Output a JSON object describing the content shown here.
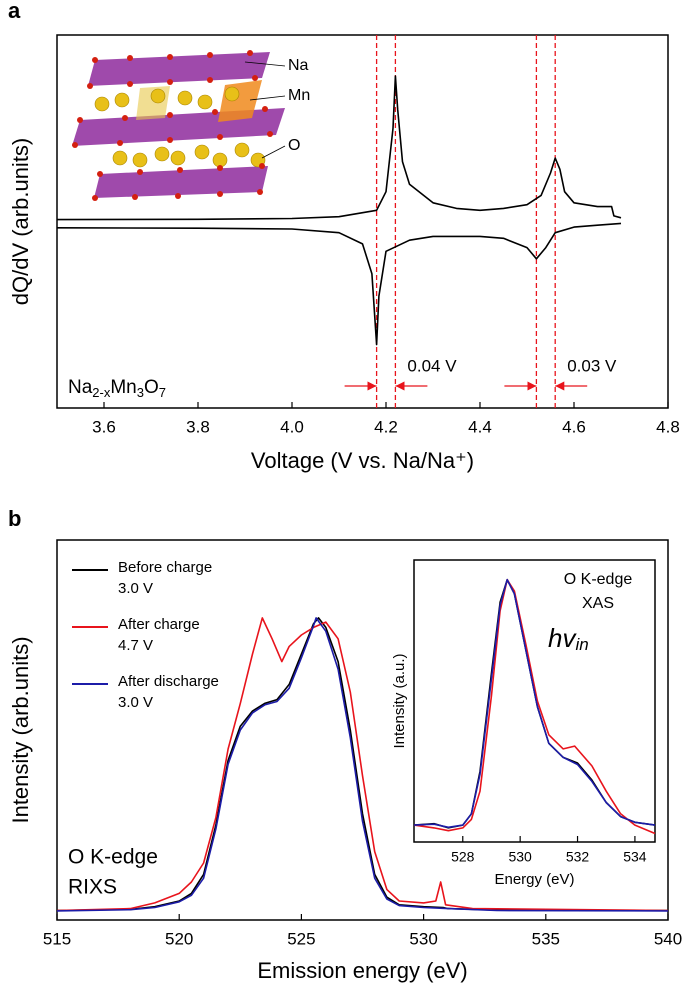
{
  "chart_data": [
    {
      "type": "line",
      "panel_label": "a",
      "xlabel": "Voltage (V vs. Na/Na⁺)",
      "ylabel": "dQ/dV (arb.units)",
      "xlim": [
        3.5,
        4.8
      ],
      "ylim": [
        0,
        100
      ],
      "xticks": [
        3.6,
        3.8,
        {
          "value": 4,
          "label": "4.0"
        },
        4.2,
        4.4,
        4.6,
        4.8
      ],
      "vlines": [
        4.18,
        4.22,
        4.52,
        4.56
      ],
      "vline_color": "#e8141c",
      "gap_labels": [
        "0.04 V",
        "0.03 V"
      ],
      "formula": [
        "Na",
        "2-x",
        "Mn",
        "3",
        "O",
        "7"
      ],
      "structure_labels": [
        "Na",
        "Mn",
        "O"
      ],
      "series": [
        {
          "color": "#000000",
          "x": [
            3.5,
            3.8,
            4.0,
            4.1,
            4.18,
            4.2,
            4.215,
            4.22,
            4.225,
            4.235,
            4.25,
            4.3,
            4.35,
            4.4,
            4.45,
            4.5,
            4.53,
            4.55,
            4.56,
            4.57,
            4.58,
            4.6,
            4.65,
            4.68,
            4.685,
            4.7
          ],
          "values": [
            50.5,
            50.6,
            50.8,
            51.3,
            53,
            58,
            75,
            89,
            80,
            66,
            60,
            55,
            53.5,
            53,
            53.5,
            54.5,
            57,
            63,
            67,
            64,
            58,
            55,
            54,
            54,
            51.5,
            51
          ]
        },
        {
          "color": "#000000",
          "x": [
            3.5,
            3.8,
            4.0,
            4.1,
            4.15,
            4.17,
            4.18,
            4.185,
            4.2,
            4.25,
            4.3,
            4.4,
            4.45,
            4.5,
            4.52,
            4.54,
            4.56,
            4.6,
            4.65,
            4.7
          ],
          "values": [
            48.3,
            48.2,
            48,
            47,
            44,
            36,
            17,
            30,
            42,
            45,
            46,
            46,
            45.5,
            43,
            40,
            43,
            47,
            48.5,
            49,
            49.5
          ]
        }
      ]
    },
    {
      "type": "line",
      "panel_label": "b",
      "xlabel": "Emission energy (eV)",
      "ylabel": "Intensity (arb.units)",
      "xlim": [
        515,
        540
      ],
      "ylim": [
        0,
        100
      ],
      "xticks": [
        515,
        520,
        525,
        530,
        535,
        540
      ],
      "text_lines": [
        "O K-edge",
        "RIXS"
      ],
      "series": [
        {
          "name": "Before charge",
          "sublabel": "3.0 V",
          "color": "#000000",
          "x": [
            515,
            518,
            519,
            520,
            520.5,
            521,
            521.5,
            522,
            522.5,
            523,
            523.5,
            524,
            524.5,
            525,
            525.5,
            525.7,
            526,
            526.5,
            527,
            527.5,
            528,
            528.5,
            529,
            530,
            530.8,
            531,
            533,
            540
          ],
          "values": [
            2.5,
            2.8,
            3.5,
            5,
            7,
            12,
            25,
            42,
            51,
            55,
            57,
            58,
            62,
            70,
            78,
            79.5,
            77,
            68,
            50,
            28,
            12,
            6,
            4,
            3.5,
            3.3,
            3,
            2.6,
            2.5
          ]
        },
        {
          "name": "After charge",
          "sublabel": "4.7 V",
          "color": "#e8141c",
          "x": [
            515,
            518,
            519,
            520,
            520.5,
            521,
            521.5,
            522,
            522.5,
            523,
            523.4,
            523.8,
            524.2,
            524.5,
            525,
            525.5,
            526,
            526.5,
            527,
            527.5,
            528,
            528.5,
            529,
            530,
            530.5,
            530.7,
            530.9,
            532,
            540
          ],
          "values": [
            2.5,
            3,
            4.5,
            7,
            10,
            15,
            27,
            45,
            57,
            70,
            79.5,
            74,
            68,
            72,
            75,
            77,
            78.4,
            74,
            60,
            38,
            18,
            8,
            5,
            4.5,
            5,
            10,
            4,
            3,
            2.5
          ]
        },
        {
          "name": "After discharge",
          "sublabel": "3.0 V",
          "color": "#1c1ca8",
          "x": [
            515,
            518,
            519,
            520,
            520.5,
            521,
            521.5,
            522,
            522.5,
            523,
            523.5,
            524,
            524.5,
            525,
            525.5,
            525.6,
            526,
            526.5,
            527,
            527.5,
            528,
            528.5,
            529,
            530,
            531,
            533,
            540
          ],
          "values": [
            2.4,
            2.7,
            3.3,
            4.8,
            6.5,
            11,
            24,
            41,
            50,
            54.5,
            56.6,
            57.5,
            61,
            69,
            77.5,
            79.5,
            76,
            66,
            48,
            26,
            11,
            5.5,
            3.8,
            3.3,
            3,
            2.5,
            2.4
          ]
        }
      ]
    },
    {
      "type": "line",
      "xlabel": "Energy (eV)",
      "ylabel": "Intensity (a.u.)",
      "xlim": [
        526.3,
        534.7
      ],
      "ylim": [
        0,
        100
      ],
      "xticks": [
        528,
        530,
        532,
        534
      ],
      "text_lines": [
        "O K-edge",
        "XAS"
      ],
      "annotation": [
        "hv",
        "in"
      ],
      "annotation_color": "#e8141c",
      "series": [
        {
          "color": "#000000",
          "x": [
            526.3,
            527,
            527.5,
            528,
            528.3,
            528.6,
            529,
            529.3,
            529.55,
            529.8,
            530.2,
            530.6,
            531,
            531.5,
            532,
            532.5,
            533,
            533.5,
            534,
            534.7
          ],
          "values": [
            6,
            6.5,
            5,
            6,
            10,
            25,
            60,
            85,
            93,
            88,
            68,
            48,
            35,
            30,
            28,
            22,
            14,
            9,
            7,
            6
          ]
        },
        {
          "color": "#e8141c",
          "x": [
            526.3,
            527,
            527.5,
            528,
            528.3,
            528.6,
            529,
            529.3,
            529.55,
            529.8,
            530.2,
            530.6,
            531,
            531.5,
            531.9,
            532.5,
            533,
            533.5,
            534,
            534.7
          ],
          "values": [
            6,
            5,
            4,
            5,
            8,
            18,
            52,
            82,
            93,
            89,
            70,
            50,
            38,
            33,
            34,
            27,
            18,
            10,
            6,
            3
          ]
        },
        {
          "color": "#1c1ca8",
          "x": [
            526.3,
            527,
            527.5,
            528,
            528.3,
            528.6,
            529,
            529.3,
            529.55,
            529.8,
            530.2,
            530.6,
            531,
            531.5,
            532,
            532.5,
            533,
            533.5,
            534,
            534.7
          ],
          "values": [
            6,
            6.3,
            5.2,
            6,
            10,
            24,
            58,
            84,
            93,
            88,
            68,
            48,
            35,
            30,
            27.5,
            21.5,
            14,
            9,
            7,
            6
          ]
        }
      ]
    }
  ]
}
